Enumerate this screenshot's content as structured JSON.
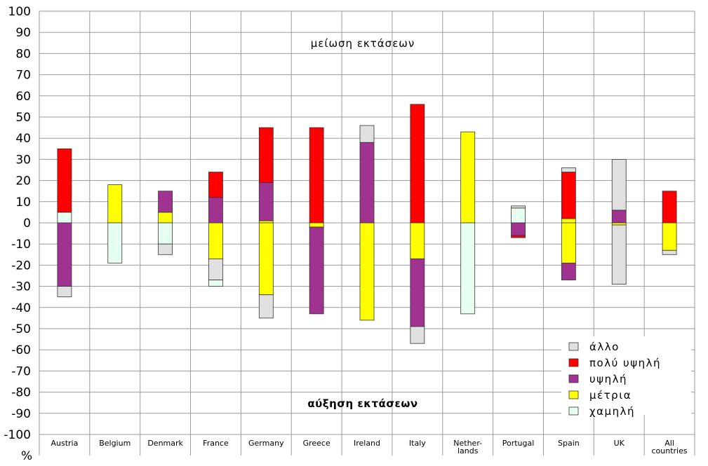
{
  "chart_data": {
    "type": "bar",
    "stacked": true,
    "diverging": true,
    "unit_label": "%",
    "ylim": [
      -100,
      100
    ],
    "y_ticks": [
      100,
      90,
      80,
      70,
      60,
      50,
      40,
      30,
      20,
      10,
      0,
      -10,
      -20,
      -30,
      -40,
      -50,
      -60,
      -70,
      -80,
      -90,
      -100
    ],
    "grid": true,
    "legend_position": "bottom-right",
    "annotations": {
      "top": "μείωση εκτάσεων",
      "bottom": "αύξηση εκτάσεων"
    },
    "categories": [
      "Austria",
      "Belgium",
      "Denmark",
      "France",
      "Germany",
      "Greece",
      "Ireland",
      "Italy",
      "Nether-lands",
      "Portugal",
      "Spain",
      "UK",
      "All countries"
    ],
    "category_lines": [
      [
        "Austria"
      ],
      [
        "Belgium"
      ],
      [
        "Denmark"
      ],
      [
        "France"
      ],
      [
        "Germany"
      ],
      [
        "Greece"
      ],
      [
        "Ireland"
      ],
      [
        "Italy"
      ],
      [
        "Nether-",
        "lands"
      ],
      [
        "Portugal"
      ],
      [
        "Spain"
      ],
      [
        "UK"
      ],
      [
        "All",
        "countries"
      ]
    ],
    "legend": [
      {
        "key": "other",
        "label": "άλλο",
        "color": "#e0e0e0"
      },
      {
        "key": "very_high",
        "label": "πολύ υψηλή",
        "color": "#ff0000"
      },
      {
        "key": "high",
        "label": "υψηλή",
        "color": "#a0338f"
      },
      {
        "key": "medium",
        "label": "μέτρια",
        "color": "#ffff00"
      },
      {
        "key": "low",
        "label": "χαμηλή",
        "color": "#e6fff0"
      }
    ],
    "series": [
      {
        "name": "χαμηλή",
        "key": "low",
        "positive": [
          5,
          0,
          0,
          0,
          0,
          0,
          0,
          0,
          0,
          7,
          0,
          0,
          0
        ],
        "negative": [
          0,
          -19,
          -10,
          0,
          0,
          0,
          0,
          0,
          -43,
          0,
          0,
          0,
          0
        ]
      },
      {
        "name": "μέτρια",
        "key": "medium",
        "positive": [
          0,
          18,
          5,
          0,
          1,
          0,
          0,
          0,
          43,
          0,
          2,
          0,
          0
        ],
        "negative": [
          0,
          0,
          0,
          -17,
          -34,
          -2,
          -46,
          -17,
          0,
          0,
          -19,
          -1,
          -13
        ]
      },
      {
        "name": "υψηλή",
        "key": "high",
        "positive": [
          0,
          0,
          10,
          12,
          18,
          0,
          38,
          0,
          0,
          0,
          0,
          6,
          0
        ],
        "negative": [
          -30,
          0,
          0,
          0,
          0,
          -41,
          0,
          -32,
          0,
          -6,
          -8,
          0,
          0
        ]
      },
      {
        "name": "πολύ υψηλή",
        "key": "very_high",
        "positive": [
          30,
          0,
          0,
          12,
          26,
          45,
          0,
          56,
          0,
          0,
          22,
          0,
          15
        ],
        "negative": [
          0,
          0,
          0,
          0,
          0,
          0,
          0,
          0,
          0,
          -1,
          0,
          0,
          0
        ]
      },
      {
        "name": "άλλο",
        "key": "other",
        "positive": [
          0,
          0,
          0,
          0,
          0,
          0,
          8,
          0,
          0,
          1,
          2,
          24,
          0
        ],
        "negative": [
          -5,
          0,
          -5,
          -10,
          -11,
          0,
          0,
          -8,
          0,
          0,
          0,
          -28,
          -2
        ]
      },
      {
        "name": "χαμηλή (crossing)",
        "key": "low",
        "positive": [
          0,
          0,
          0,
          0,
          0,
          0,
          0,
          0,
          0,
          0,
          0,
          0,
          0
        ],
        "negative": [
          0,
          0,
          0,
          -3,
          0,
          0,
          0,
          0,
          0,
          0,
          0,
          0,
          0
        ]
      }
    ]
  }
}
